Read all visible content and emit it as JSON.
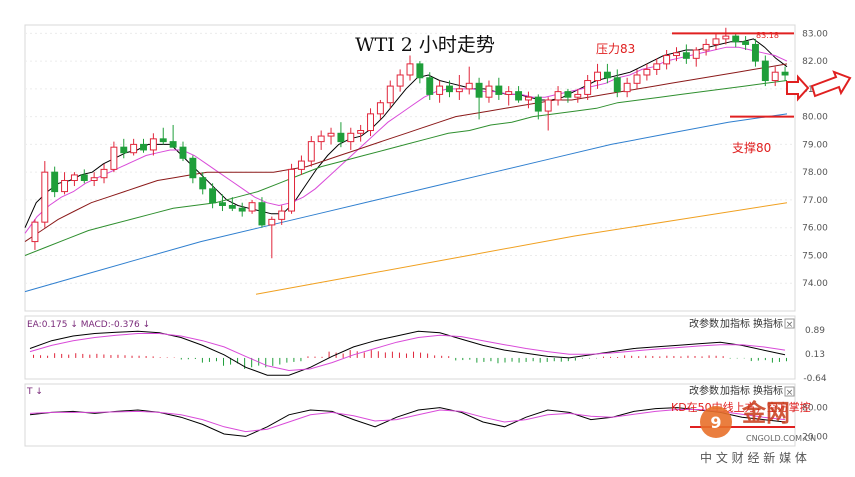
{
  "chart_data": [
    {
      "panel": "price",
      "type": "candlestick",
      "title": "WTI 2 小时走势",
      "ylim": [
        73.0,
        83.3
      ],
      "yticks": [
        "83.00",
        "82.00",
        "81.00",
        "80.00",
        "79.00",
        "78.00",
        "77.00",
        "76.00",
        "75.00",
        "74.00"
      ],
      "annotations": {
        "resistance_label": "压力83",
        "support_label": "支撑80",
        "resistance_value": 83.0,
        "support_value": 80.0,
        "high_label": "83.18"
      },
      "colors": {
        "up": "#e0253a",
        "down": "#1f9e3a",
        "ma5": "#000000",
        "ma10": "#d94bd9",
        "ma20": "#8a8a8a",
        "ma30": "#8b1a1a",
        "ma60": "#2f8f2f",
        "ma120": "#2f7fcf",
        "ma250": "#f0a020",
        "resistance": "#e02020",
        "support": "#e02020"
      },
      "candles": [
        [
          75.5,
          76.3,
          75.2,
          76.2
        ],
        [
          76.2,
          78.4,
          76.0,
          78.0
        ],
        [
          78.0,
          78.2,
          77.1,
          77.3
        ],
        [
          77.3,
          78.0,
          77.2,
          77.7
        ],
        [
          77.7,
          78.0,
          77.5,
          77.9
        ],
        [
          77.9,
          78.1,
          77.6,
          77.7
        ],
        [
          77.7,
          78.0,
          77.5,
          77.8
        ],
        [
          77.8,
          78.3,
          77.6,
          78.1
        ],
        [
          78.1,
          79.1,
          78.0,
          78.9
        ],
        [
          78.9,
          79.2,
          78.5,
          78.7
        ],
        [
          78.7,
          79.2,
          78.6,
          79.0
        ],
        [
          79.0,
          79.2,
          78.7,
          78.8
        ],
        [
          78.8,
          79.4,
          78.6,
          79.2
        ],
        [
          79.2,
          79.6,
          79.0,
          79.1
        ],
        [
          79.1,
          79.7,
          78.9,
          78.9
        ],
        [
          78.9,
          79.1,
          78.4,
          78.5
        ],
        [
          78.5,
          78.6,
          77.6,
          77.8
        ],
        [
          77.8,
          78.0,
          77.2,
          77.4
        ],
        [
          77.4,
          77.6,
          76.7,
          76.9
        ],
        [
          76.9,
          77.2,
          76.6,
          76.8
        ],
        [
          76.8,
          77.1,
          76.6,
          76.7
        ],
        [
          76.7,
          76.9,
          76.4,
          76.6
        ],
        [
          76.6,
          77.0,
          76.5,
          76.9
        ],
        [
          76.9,
          77.1,
          76.0,
          76.1
        ],
        [
          76.1,
          76.4,
          74.9,
          76.3
        ],
        [
          76.3,
          76.8,
          76.1,
          76.6
        ],
        [
          76.6,
          78.3,
          76.5,
          78.1
        ],
        [
          78.1,
          78.6,
          77.9,
          78.4
        ],
        [
          78.4,
          79.3,
          78.2,
          79.1
        ],
        [
          79.1,
          79.5,
          78.8,
          79.3
        ],
        [
          79.3,
          79.6,
          79.0,
          79.4
        ],
        [
          79.4,
          79.8,
          78.9,
          79.1
        ],
        [
          79.1,
          79.6,
          78.8,
          79.4
        ],
        [
          79.4,
          79.7,
          79.1,
          79.5
        ],
        [
          79.5,
          80.3,
          79.3,
          80.1
        ],
        [
          80.1,
          80.6,
          79.9,
          80.5
        ],
        [
          80.5,
          81.3,
          80.3,
          81.1
        ],
        [
          81.1,
          81.7,
          80.9,
          81.5
        ],
        [
          81.5,
          82.2,
          81.3,
          81.9
        ],
        [
          81.9,
          82.0,
          81.2,
          81.4
        ],
        [
          81.4,
          81.6,
          80.6,
          80.8
        ],
        [
          80.8,
          81.3,
          80.5,
          81.1
        ],
        [
          81.1,
          81.3,
          80.7,
          80.9
        ],
        [
          80.9,
          81.5,
          80.6,
          81.0
        ],
        [
          81.0,
          81.8,
          80.8,
          81.2
        ],
        [
          81.2,
          81.4,
          79.9,
          80.7
        ],
        [
          80.7,
          81.3,
          80.5,
          81.1
        ],
        [
          81.1,
          81.4,
          80.6,
          80.8
        ],
        [
          80.8,
          81.1,
          80.4,
          80.9
        ],
        [
          80.9,
          81.1,
          80.5,
          80.6
        ],
        [
          80.6,
          80.9,
          80.3,
          80.7
        ],
        [
          80.7,
          80.8,
          79.9,
          80.2
        ],
        [
          80.2,
          80.7,
          79.5,
          80.6
        ],
        [
          80.6,
          81.1,
          80.4,
          80.9
        ],
        [
          80.9,
          81.0,
          80.5,
          80.7
        ],
        [
          80.7,
          81.0,
          80.5,
          80.8
        ],
        [
          80.8,
          81.5,
          80.6,
          81.3
        ],
        [
          81.3,
          81.9,
          81.0,
          81.6
        ],
        [
          81.6,
          81.9,
          81.2,
          81.4
        ],
        [
          81.4,
          81.7,
          80.7,
          80.9
        ],
        [
          80.9,
          81.4,
          80.7,
          81.2
        ],
        [
          81.2,
          81.7,
          81.0,
          81.5
        ],
        [
          81.5,
          81.9,
          81.3,
          81.7
        ],
        [
          81.7,
          82.1,
          81.5,
          81.9
        ],
        [
          81.9,
          82.4,
          81.7,
          82.2
        ],
        [
          82.2,
          82.5,
          82.0,
          82.3
        ],
        [
          82.3,
          82.6,
          81.9,
          82.1
        ],
        [
          82.1,
          82.5,
          81.8,
          82.4
        ],
        [
          82.4,
          82.8,
          82.2,
          82.6
        ],
        [
          82.6,
          83.0,
          82.4,
          82.8
        ],
        [
          82.8,
          83.2,
          82.6,
          82.9
        ],
        [
          82.9,
          83.0,
          82.5,
          82.7
        ],
        [
          82.7,
          82.9,
          82.4,
          82.6
        ],
        [
          82.6,
          82.8,
          81.8,
          82.0
        ],
        [
          82.0,
          82.2,
          81.1,
          81.3
        ],
        [
          81.3,
          81.8,
          81.1,
          81.6
        ],
        [
          81.6,
          81.8,
          81.3,
          81.5
        ]
      ],
      "ma": {
        "ma5": [
          76.0,
          76.9,
          77.3,
          77.6,
          77.7,
          77.9,
          78.0,
          78.3,
          78.5,
          78.7,
          78.8,
          79.0,
          79.0,
          79.0,
          78.6,
          78.2,
          77.8,
          77.4,
          77.0,
          76.8,
          76.7,
          76.6,
          76.5,
          76.5,
          76.9,
          77.5,
          78.1,
          78.6,
          79.0,
          79.2,
          79.3,
          79.6,
          80.0,
          80.5,
          81.0,
          81.4,
          81.5,
          81.3,
          81.2,
          81.1,
          81.0,
          81.0,
          80.9,
          80.8,
          80.8,
          80.7,
          80.6,
          80.6,
          80.7,
          80.9,
          81.1,
          81.3,
          81.4,
          81.5,
          81.6,
          81.8,
          82.0,
          82.2,
          82.3,
          82.4,
          82.4,
          82.5,
          82.6,
          82.7,
          82.7,
          82.8,
          82.5,
          82.1,
          81.8
        ],
        "ma10": [
          75.8,
          76.4,
          76.8,
          77.1,
          77.3,
          77.6,
          77.8,
          78.0,
          78.2,
          78.4,
          78.6,
          78.7,
          78.8,
          78.8,
          78.6,
          78.3,
          78.0,
          77.7,
          77.4,
          77.1,
          76.9,
          76.8,
          76.9,
          77.1,
          77.4,
          77.8,
          78.2,
          78.6,
          79.0,
          79.4,
          79.8,
          80.1,
          80.4,
          80.7,
          80.9,
          81.0,
          81.0,
          81.0,
          80.9,
          80.9,
          80.8,
          80.8,
          80.7,
          80.7,
          80.8,
          80.9,
          81.0,
          81.1,
          81.2,
          81.4,
          81.5,
          81.7,
          81.8,
          82.0,
          82.1,
          82.2,
          82.3,
          82.4,
          82.5,
          82.5,
          82.4,
          82.3,
          82.2,
          82.0
        ],
        "ma30": [
          75.5,
          75.9,
          76.3,
          76.6,
          76.9,
          77.1,
          77.3,
          77.5,
          77.7,
          77.8,
          77.9,
          78.0,
          78.0,
          78.0,
          78.0,
          78.0,
          78.1,
          78.2,
          78.4,
          78.6,
          78.8,
          79.0,
          79.2,
          79.4,
          79.6,
          79.8,
          80.0,
          80.1,
          80.2,
          80.3,
          80.4,
          80.5,
          80.6,
          80.6,
          80.7,
          80.8,
          80.9,
          81.0,
          81.1,
          81.2,
          81.3,
          81.4,
          81.5,
          81.6,
          81.7,
          81.8,
          81.9
        ],
        "ma60": [
          75.0,
          75.3,
          75.6,
          75.9,
          76.1,
          76.3,
          76.5,
          76.7,
          76.8,
          76.9,
          77.1,
          77.3,
          77.6,
          77.9,
          78.2,
          78.4,
          78.6,
          78.8,
          79.0,
          79.2,
          79.4,
          79.5,
          79.7,
          79.8,
          80.0,
          80.1,
          80.2,
          80.3,
          80.5,
          80.6,
          80.7,
          80.8,
          80.9,
          81.0,
          81.1,
          81.2,
          81.3
        ],
        "ma120": [
          73.7,
          74.3,
          74.9,
          75.5,
          76.0,
          76.5,
          77.0,
          77.5,
          78.0,
          78.5,
          79.0,
          79.4,
          79.8,
          80.1
        ],
        "ma250": [
          73.6,
          74.3,
          75.0,
          75.7,
          76.3,
          76.9
        ]
      }
    },
    {
      "panel": "macd",
      "type": "line",
      "header": "EA:0.175 ↓ MACD:-0.376 ↓",
      "yticks": [
        "0.89",
        "0.13",
        "-0.64"
      ],
      "buttons": [
        "改参数",
        "加指标",
        "换指标"
      ],
      "close_glyph": "×",
      "series": [
        {
          "values": [
            0.3,
            0.55,
            0.7,
            0.78,
            0.82,
            0.85,
            0.8,
            0.65,
            0.4,
            0.1,
            -0.3,
            -0.55,
            -0.55,
            -0.3,
            0.05,
            0.35,
            0.55,
            0.7,
            0.85,
            0.8,
            0.6,
            0.4,
            0.25,
            0.15,
            0.05,
            0.0,
            0.1,
            0.2,
            0.3,
            0.35,
            0.4,
            0.45,
            0.5,
            0.4,
            0.25,
            0.1
          ]
        },
        {
          "values": [
            0.2,
            0.4,
            0.55,
            0.65,
            0.72,
            0.78,
            0.78,
            0.7,
            0.55,
            0.35,
            0.05,
            -0.25,
            -0.4,
            -0.35,
            -0.15,
            0.1,
            0.3,
            0.5,
            0.65,
            0.72,
            0.68,
            0.55,
            0.42,
            0.3,
            0.2,
            0.12,
            0.12,
            0.16,
            0.22,
            0.28,
            0.33,
            0.38,
            0.42,
            0.42,
            0.35,
            0.25
          ]
        }
      ],
      "histogram": [
        0.1,
        0.15,
        0.15,
        0.13,
        0.1,
        0.07,
        0.02,
        -0.05,
        -0.15,
        -0.25,
        -0.35,
        -0.3,
        -0.15,
        0.05,
        0.2,
        0.25,
        0.25,
        0.2,
        0.2,
        0.08,
        -0.08,
        -0.15,
        -0.17,
        -0.15,
        -0.15,
        -0.12,
        -0.02,
        0.04,
        0.08,
        0.07,
        0.07,
        0.07,
        0.08,
        -0.02,
        -0.1,
        -0.15
      ]
    },
    {
      "panel": "kdj",
      "type": "line",
      "header": "T ↓",
      "buttons": [
        "改参数",
        "加指标",
        "换指标"
      ],
      "close_glyph": "×",
      "yticks": [
        "80.00",
        "",
        "20.00"
      ],
      "annotation": "KD在50中线上方，空方掌控",
      "series": [
        {
          "values": [
            65,
            70,
            72,
            68,
            72,
            75,
            70,
            60,
            45,
            25,
            20,
            40,
            65,
            75,
            72,
            55,
            40,
            60,
            75,
            80,
            70,
            50,
            40,
            60,
            75,
            70,
            55,
            60,
            72,
            78,
            80,
            75,
            70,
            60,
            55,
            50
          ]
        },
        {
          "values": [
            68,
            70,
            70,
            70,
            71,
            72,
            70,
            65,
            55,
            40,
            30,
            35,
            50,
            65,
            70,
            63,
            52,
            55,
            65,
            75,
            72,
            60,
            50,
            55,
            65,
            68,
            62,
            60,
            66,
            72,
            76,
            76,
            72,
            66,
            60,
            55
          ]
        }
      ]
    }
  ],
  "watermark": {
    "sub": "CNGOLD.COM.CN",
    "bottom": "中 文 财 经 新 媒 体"
  }
}
